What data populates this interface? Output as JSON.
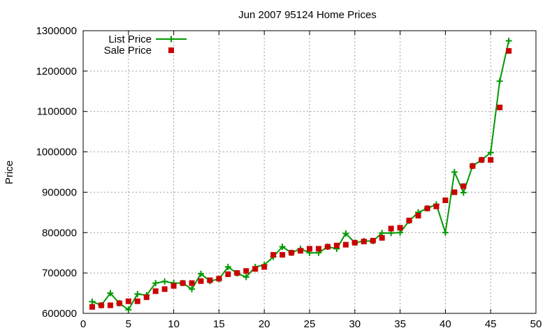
{
  "chart_data": {
    "type": "line",
    "title": "Jun 2007 95124 Home Prices",
    "xlabel": "",
    "ylabel": "Price",
    "xlim": [
      0,
      50
    ],
    "ylim": [
      600000,
      1300000
    ],
    "x_ticks": [
      0,
      5,
      10,
      15,
      20,
      25,
      30,
      35,
      40,
      45,
      50
    ],
    "y_ticks": [
      600000,
      700000,
      800000,
      900000,
      1000000,
      1100000,
      1200000,
      1300000
    ],
    "grid": true,
    "legend_position": "top-left",
    "series": [
      {
        "name": "List Price",
        "style": "lines+points",
        "marker": "plus",
        "color": "#009900",
        "points": [
          [
            1,
            629000
          ],
          [
            2,
            620000
          ],
          [
            3,
            650000
          ],
          [
            4,
            625000
          ],
          [
            5,
            609000
          ],
          [
            6,
            648000
          ],
          [
            7,
            645000
          ],
          [
            8,
            675000
          ],
          [
            9,
            679000
          ],
          [
            10,
            675000
          ],
          [
            11,
            675000
          ],
          [
            12,
            660000
          ],
          [
            13,
            698000
          ],
          [
            14,
            680000
          ],
          [
            15,
            685000
          ],
          [
            16,
            715000
          ],
          [
            17,
            699000
          ],
          [
            18,
            690000
          ],
          [
            19,
            715000
          ],
          [
            20,
            720000
          ],
          [
            21,
            740000
          ],
          [
            22,
            765000
          ],
          [
            23,
            750000
          ],
          [
            24,
            760000
          ],
          [
            25,
            750000
          ],
          [
            26,
            750000
          ],
          [
            27,
            765000
          ],
          [
            28,
            760000
          ],
          [
            29,
            798000
          ],
          [
            30,
            775000
          ],
          [
            31,
            779000
          ],
          [
            32,
            779000
          ],
          [
            33,
            799000
          ],
          [
            34,
            799000
          ],
          [
            35,
            800000
          ],
          [
            36,
            829000
          ],
          [
            37,
            850000
          ],
          [
            38,
            860000
          ],
          [
            39,
            870000
          ],
          [
            40,
            800000
          ],
          [
            41,
            950000
          ],
          [
            42,
            899000
          ],
          [
            43,
            965000
          ],
          [
            44,
            980000
          ],
          [
            45,
            998000
          ],
          [
            46,
            1175000
          ],
          [
            47,
            1275000
          ]
        ]
      },
      {
        "name": "Sale Price",
        "style": "points",
        "marker": "square",
        "color": "#cc0000",
        "points": [
          [
            1,
            616000
          ],
          [
            2,
            620000
          ],
          [
            3,
            620000
          ],
          [
            4,
            625000
          ],
          [
            5,
            630000
          ],
          [
            6,
            630000
          ],
          [
            7,
            640000
          ],
          [
            8,
            655000
          ],
          [
            9,
            660000
          ],
          [
            10,
            668000
          ],
          [
            11,
            675000
          ],
          [
            12,
            675000
          ],
          [
            13,
            680000
          ],
          [
            14,
            682000
          ],
          [
            15,
            686000
          ],
          [
            16,
            697000
          ],
          [
            17,
            700000
          ],
          [
            18,
            705000
          ],
          [
            19,
            710000
          ],
          [
            20,
            715000
          ],
          [
            21,
            745000
          ],
          [
            22,
            745000
          ],
          [
            23,
            750000
          ],
          [
            24,
            755000
          ],
          [
            25,
            760000
          ],
          [
            26,
            760000
          ],
          [
            27,
            765000
          ],
          [
            28,
            768000
          ],
          [
            29,
            770000
          ],
          [
            30,
            775000
          ],
          [
            31,
            778000
          ],
          [
            32,
            780000
          ],
          [
            33,
            787000
          ],
          [
            34,
            810000
          ],
          [
            35,
            812000
          ],
          [
            36,
            830000
          ],
          [
            37,
            842000
          ],
          [
            38,
            860000
          ],
          [
            39,
            865000
          ],
          [
            40,
            880000
          ],
          [
            41,
            900000
          ],
          [
            42,
            915000
          ],
          [
            43,
            965000
          ],
          [
            44,
            980000
          ],
          [
            45,
            980000
          ],
          [
            46,
            1110000
          ],
          [
            47,
            1250000
          ]
        ]
      }
    ]
  }
}
